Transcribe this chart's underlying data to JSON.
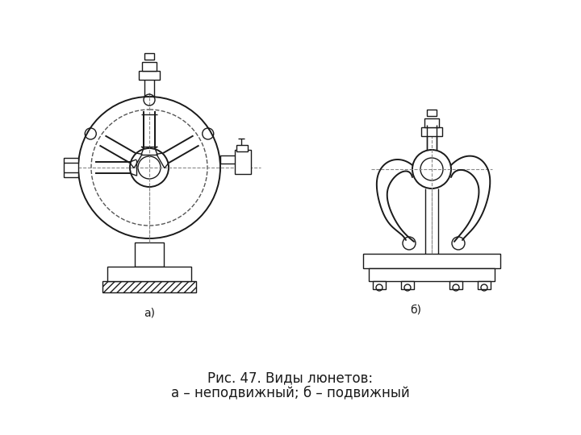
{
  "title_line1": "Рис. 47. Виды люнетов:",
  "title_line2": "а – неподвижный; б – подвижный",
  "label_a": "а)",
  "label_b": "б)",
  "bg_color": "#ffffff",
  "line_color": "#1a1a1a",
  "dash_color": "#555555",
  "font_size_caption": 12,
  "font_size_label": 10,
  "fig_width": 7.2,
  "fig_height": 5.4,
  "dpi": 100
}
